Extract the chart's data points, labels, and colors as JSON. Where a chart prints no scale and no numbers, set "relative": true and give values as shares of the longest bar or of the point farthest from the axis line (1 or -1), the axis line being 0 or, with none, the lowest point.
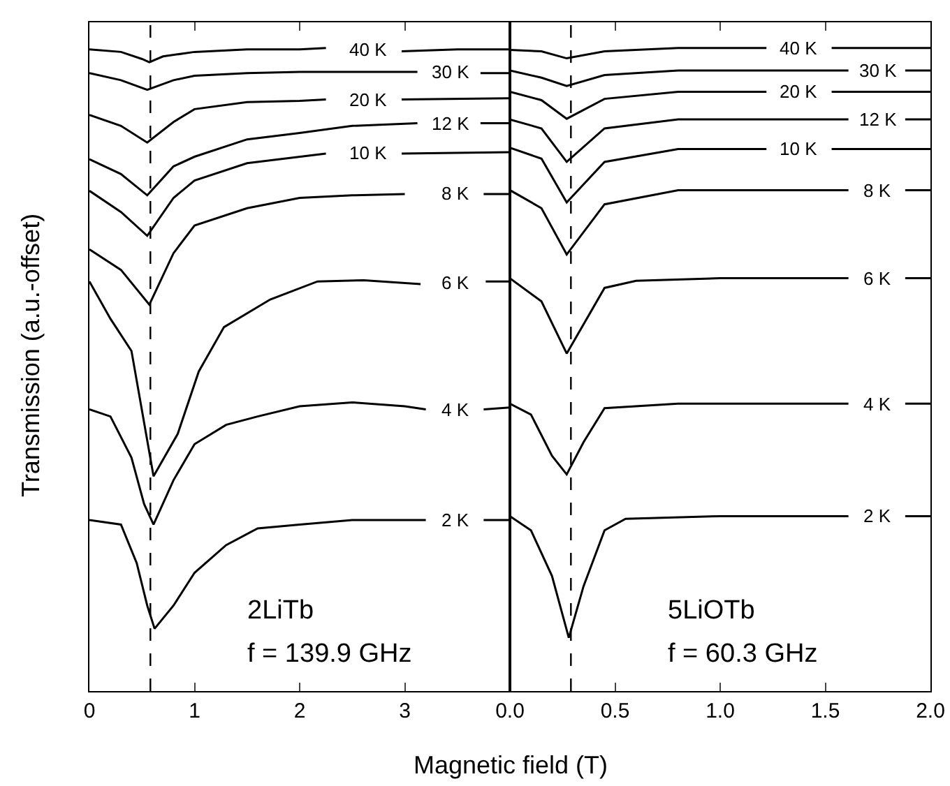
{
  "chart_data": [
    {
      "type": "line",
      "relative": true,
      "xlabel": "Magnetic field (T)",
      "ylabel": "Transmission (a.u.-offset)",
      "xlim": [
        0,
        4
      ],
      "xticks": [
        0,
        1,
        2,
        3
      ],
      "annotations": [
        "2LiTb",
        "f = 139.9 GHz"
      ],
      "ref_lines": [
        {
          "axis": "x",
          "value": 0.58,
          "color": "#000000",
          "line_style": "dashed"
        }
      ],
      "series": [
        {
          "name": "40 K",
          "color": "#000000",
          "x": [
            0,
            0.3,
            0.5,
            0.57,
            0.7,
            1.0,
            1.5,
            2.0,
            2.25,
            2.65,
            2.97,
            3.5,
            4.0
          ],
          "values": [
            0.998,
            0.994,
            0.983,
            0.978,
            0.987,
            0.994,
            0.998,
            0.998,
            1.0,
            null,
            0.995,
            0.998,
            0.998
          ]
        },
        {
          "name": "30 K",
          "color": "#000000",
          "x": [
            0,
            0.3,
            0.55,
            0.8,
            1.0,
            1.5,
            2.0,
            2.5,
            3.12,
            3.44,
            3.72,
            4.0
          ],
          "values": [
            0.961,
            0.95,
            0.935,
            0.95,
            0.957,
            0.961,
            0.963,
            0.963,
            0.963,
            null,
            0.961,
            0.961
          ]
        },
        {
          "name": "20 K",
          "color": "#000000",
          "x": [
            0,
            0.3,
            0.55,
            0.8,
            1.0,
            1.5,
            2.0,
            2.25,
            2.65,
            2.97,
            4.0
          ],
          "values": [
            0.896,
            0.879,
            0.853,
            0.885,
            0.905,
            0.916,
            0.918,
            0.92,
            null,
            0.92,
            0.922
          ]
        },
        {
          "name": "12 K",
          "color": "#000000",
          "x": [
            0,
            0.3,
            0.55,
            0.8,
            1.0,
            1.5,
            2.0,
            2.5,
            3.12,
            3.44,
            3.72,
            4.0
          ],
          "values": [
            0.827,
            0.804,
            0.771,
            0.816,
            0.831,
            0.858,
            0.868,
            0.879,
            0.883,
            null,
            0.883,
            0.883
          ]
        },
        {
          "name": "10 K",
          "color": "#000000",
          "x": [
            0,
            0.3,
            0.55,
            0.8,
            1.0,
            1.5,
            2.25,
            2.65,
            2.97,
            4.0
          ],
          "values": [
            0.778,
            0.745,
            0.708,
            0.767,
            0.794,
            0.821,
            0.836,
            null,
            0.836,
            0.838
          ]
        },
        {
          "name": "8 K",
          "color": "#000000",
          "x": [
            0,
            0.3,
            0.57,
            0.8,
            1.0,
            1.5,
            2.0,
            2.5,
            3.0,
            3.48,
            3.75,
            4.0
          ],
          "values": [
            0.687,
            0.655,
            0.601,
            0.681,
            0.724,
            0.751,
            0.767,
            0.771,
            0.773,
            null,
            0.773,
            0.773
          ]
        },
        {
          "name": "6 K",
          "color": "#000000",
          "x": [
            0,
            0.2,
            0.4,
            0.47,
            0.61,
            0.84,
            1.04,
            1.28,
            1.72,
            2.17,
            2.61,
            3.15,
            3.48,
            3.77,
            4.0
          ],
          "values": [
            0.637,
            0.579,
            0.529,
            0.464,
            0.334,
            0.4,
            0.497,
            0.566,
            0.609,
            0.637,
            0.639,
            0.633,
            null,
            0.637,
            0.637
          ]
        },
        {
          "name": "4 K",
          "color": "#000000",
          "x": [
            0,
            0.2,
            0.4,
            0.52,
            0.61,
            0.8,
            1.0,
            1.3,
            1.6,
            2.0,
            2.5,
            3.0,
            3.2,
            3.48,
            3.75,
            4.0
          ],
          "values": [
            0.438,
            0.427,
            0.363,
            0.291,
            0.259,
            0.328,
            0.384,
            0.414,
            0.427,
            0.443,
            0.449,
            0.443,
            0.438,
            null,
            0.438,
            0.441
          ]
        },
        {
          "name": "2 K",
          "color": "#000000",
          "x": [
            0,
            0.3,
            0.45,
            0.55,
            0.62,
            0.8,
            1.0,
            1.3,
            1.6,
            2.0,
            2.5,
            3.0,
            3.2,
            3.48,
            3.75,
            4.0
          ],
          "values": [
            0.266,
            0.259,
            0.199,
            0.133,
            0.097,
            0.133,
            0.184,
            0.227,
            0.253,
            0.259,
            0.266,
            0.266,
            0.266,
            null,
            0.266,
            0.266
          ]
        }
      ]
    },
    {
      "type": "line",
      "relative": true,
      "xlim": [
        0,
        2
      ],
      "xticks": [
        {
          "value": 0,
          "label": "0.0"
        },
        {
          "value": 0.5,
          "label": "0.5"
        },
        {
          "value": 1,
          "label": "1.0"
        },
        {
          "value": 1.5,
          "label": "1.5"
        },
        {
          "value": 2,
          "label": "2.0"
        }
      ],
      "annotations": [
        "5LiOTb",
        "f = 60.3 GHz"
      ],
      "ref_lines": [
        {
          "axis": "x",
          "value": 0.29,
          "color": "#000000",
          "line_style": "dashed"
        }
      ],
      "series": [
        {
          "name": "40 K",
          "color": "#000000",
          "x": [
            0,
            0.15,
            0.27,
            0.45,
            0.8,
            1.22,
            1.37,
            1.53,
            2.0
          ],
          "values": [
            0.997,
            0.995,
            0.984,
            0.995,
            1.0,
            1.0,
            null,
            1.0,
            1.0
          ]
        },
        {
          "name": "30 K",
          "color": "#000000",
          "x": [
            0,
            0.15,
            0.27,
            0.45,
            0.8,
            1.61,
            1.75,
            1.88,
            2.0
          ],
          "values": [
            0.965,
            0.954,
            0.941,
            0.958,
            0.965,
            0.965,
            null,
            0.965,
            0.965
          ]
        },
        {
          "name": "20 K",
          "color": "#000000",
          "x": [
            0,
            0.15,
            0.27,
            0.45,
            0.8,
            1.22,
            1.37,
            1.53,
            2.0
          ],
          "values": [
            0.932,
            0.919,
            0.89,
            0.921,
            0.932,
            0.932,
            null,
            0.932,
            0.932
          ]
        },
        {
          "name": "12 K",
          "color": "#000000",
          "x": [
            0,
            0.15,
            0.27,
            0.45,
            0.8,
            1.61,
            1.75,
            1.88,
            2.0
          ],
          "values": [
            0.889,
            0.875,
            0.823,
            0.875,
            0.889,
            0.889,
            null,
            0.889,
            0.889
          ]
        },
        {
          "name": "10 K",
          "color": "#000000",
          "x": [
            0,
            0.15,
            0.27,
            0.45,
            0.8,
            1.22,
            1.37,
            1.53,
            2.0
          ],
          "values": [
            0.845,
            0.828,
            0.76,
            0.823,
            0.843,
            0.843,
            null,
            0.843,
            0.843
          ]
        },
        {
          "name": "8 K",
          "color": "#000000",
          "x": [
            0,
            0.15,
            0.27,
            0.45,
            0.8,
            1.61,
            1.75,
            1.88,
            2.0
          ],
          "values": [
            0.779,
            0.751,
            0.679,
            0.757,
            0.779,
            0.779,
            null,
            0.779,
            0.779
          ]
        },
        {
          "name": "6 K",
          "color": "#000000",
          "x": [
            0,
            0.15,
            0.27,
            0.45,
            0.6,
            1.0,
            1.61,
            1.75,
            1.88,
            2.0
          ],
          "values": [
            0.642,
            0.606,
            0.525,
            0.627,
            0.638,
            0.642,
            0.642,
            null,
            0.642,
            0.642
          ]
        },
        {
          "name": "4 K",
          "color": "#000000",
          "x": [
            0,
            0.1,
            0.2,
            0.27,
            0.35,
            0.45,
            0.8,
            1.61,
            1.75,
            1.88,
            2.0
          ],
          "values": [
            0.447,
            0.43,
            0.366,
            0.337,
            0.387,
            0.44,
            0.447,
            0.447,
            null,
            0.447,
            0.447
          ]
        },
        {
          "name": "2 K",
          "color": "#000000",
          "x": [
            0,
            0.1,
            0.2,
            0.28,
            0.35,
            0.45,
            0.55,
            1.0,
            1.61,
            1.75,
            1.88,
            2.0
          ],
          "values": [
            0.272,
            0.25,
            0.179,
            0.083,
            0.163,
            0.25,
            0.268,
            0.272,
            0.272,
            null,
            0.272,
            0.272
          ]
        }
      ]
    }
  ]
}
